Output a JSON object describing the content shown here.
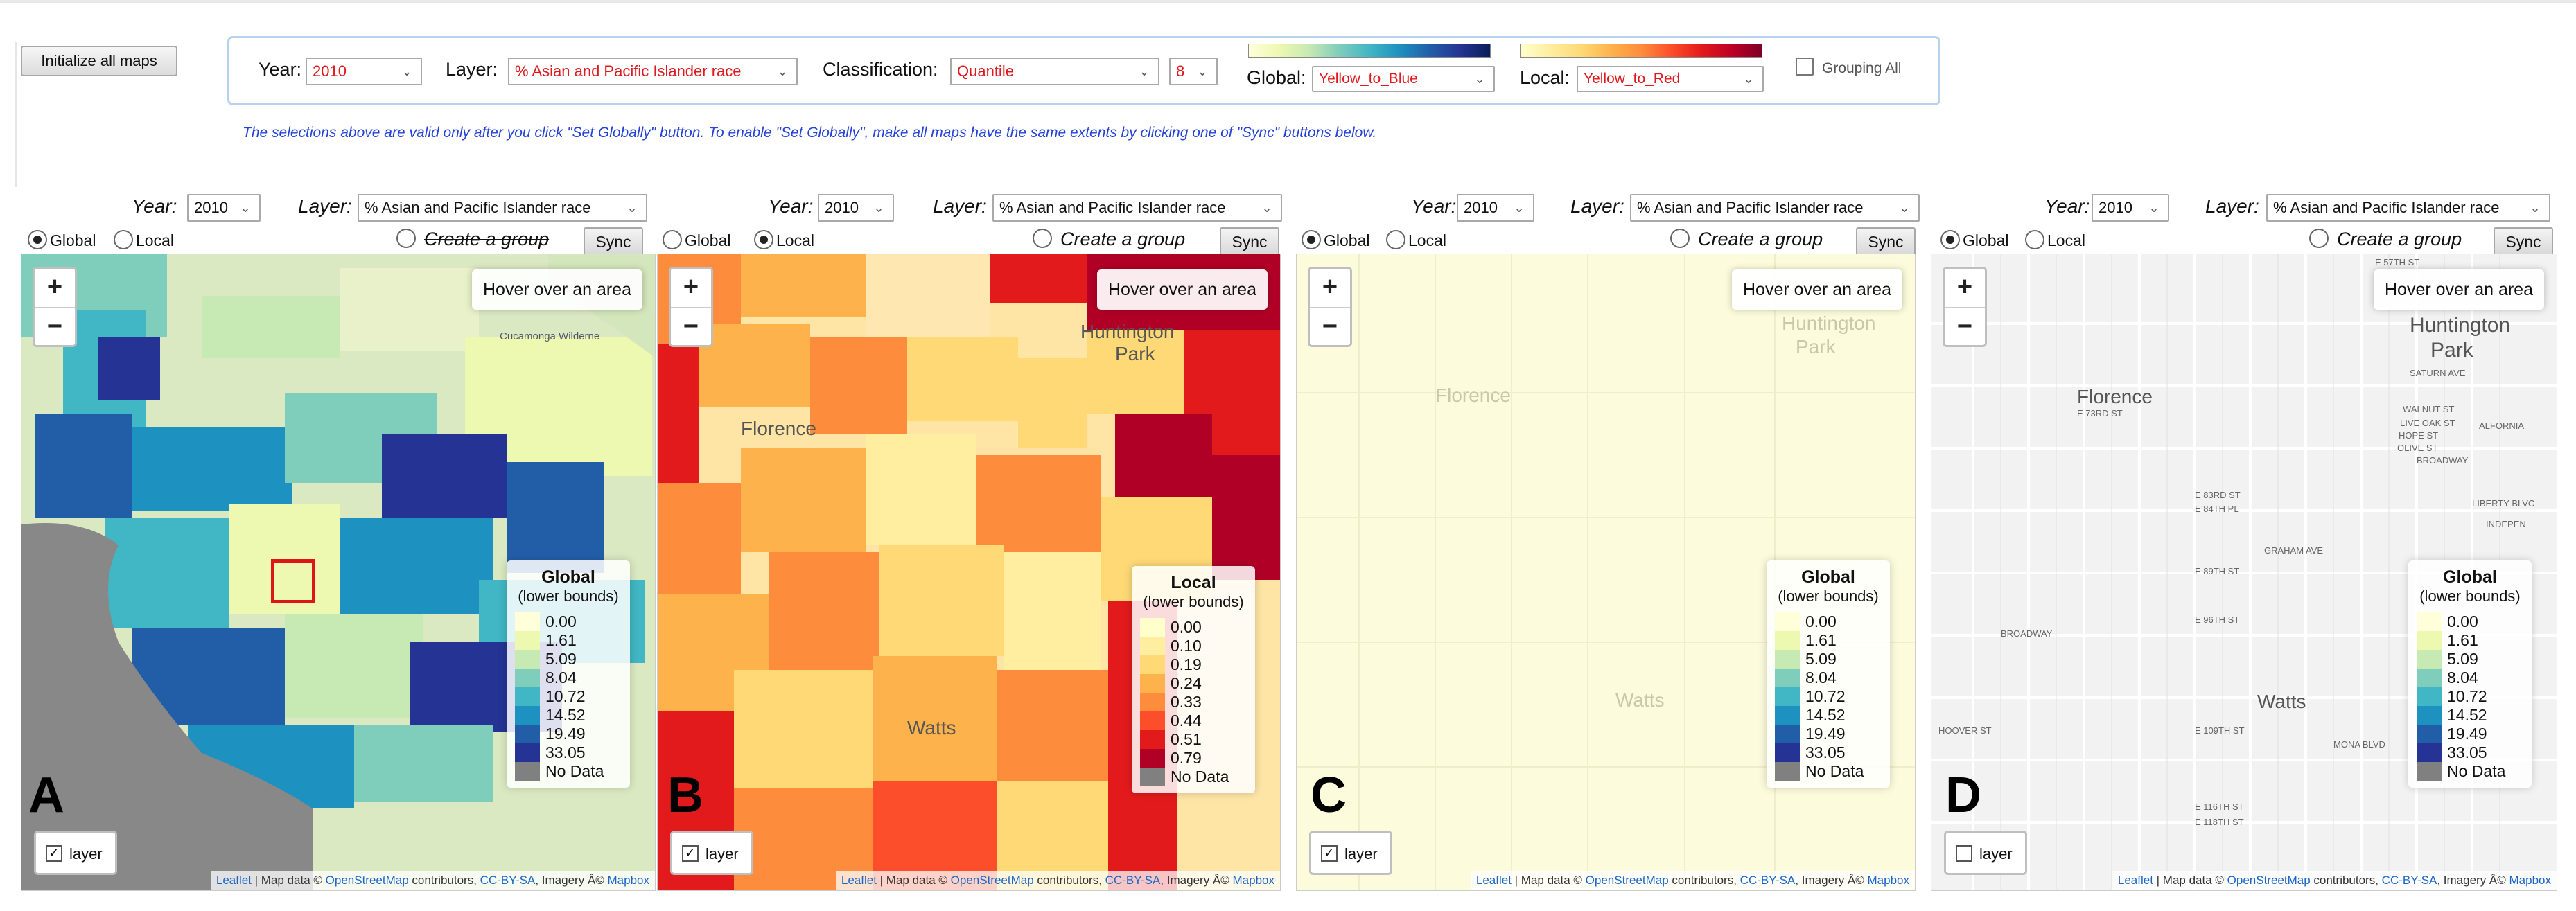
{
  "toolbar": {
    "init_button": "Initialize all maps",
    "year_label": "Year:",
    "year_value": "2010",
    "layer_label": "Layer:",
    "layer_value": "% Asian and Pacific Islander race",
    "classification_label": "Classification:",
    "classification_value": "Quantile",
    "classes_value": "8",
    "global_label": "Global:",
    "global_ramp_value": "Yellow_to_Blue",
    "local_label": "Local:",
    "local_ramp_value": "Yellow_to_Red",
    "grouping_label": "Grouping All",
    "note": "The selections above are valid only after you click \"Set Globally\" button. To enable \"Set Globally\", make all maps have the same extents by clicking one of \"Sync\" buttons below."
  },
  "panels": [
    {
      "letter": "A",
      "year_label": "Year:",
      "year": "2010",
      "layer_label": "Layer:",
      "layer": "% Asian and Pacific Islander race",
      "global_label": "Global",
      "local_label": "Local",
      "mode": "global",
      "group_label": "Create a group",
      "sync_label": "Sync",
      "zoom_in": "+",
      "zoom_out": "−",
      "hover_text": "Hover over an area",
      "legend_title": "Global",
      "legend_sub": "(lower bounds)",
      "layer_label_ctrl": "layer",
      "layer_checked": true,
      "places": [
        "Cucamonga Wilderne"
      ]
    },
    {
      "letter": "B",
      "year_label": "Year:",
      "year": "2010",
      "layer_label": "Layer:",
      "layer": "% Asian and Pacific Islander race",
      "global_label": "Global",
      "local_label": "Local",
      "mode": "local",
      "group_label": "Create a group",
      "sync_label": "Sync",
      "zoom_in": "+",
      "zoom_out": "−",
      "hover_text": "Hover over an area",
      "legend_title": "Local",
      "legend_sub": "(lower bounds)",
      "layer_label_ctrl": "layer",
      "layer_checked": true,
      "places": [
        "Florence",
        "Watts",
        "Huntington",
        "Park"
      ]
    },
    {
      "letter": "C",
      "year_label": "Year:",
      "year": "2010",
      "layer_label": "Layer:",
      "layer": "% Asian and Pacific Islander race",
      "global_label": "Global",
      "local_label": "Local",
      "mode": "global",
      "group_label": "Create a group",
      "sync_label": "Sync",
      "zoom_in": "+",
      "zoom_out": "−",
      "hover_text": "Hover over an area",
      "legend_title": "Global",
      "legend_sub": "(lower bounds)",
      "layer_label_ctrl": "layer",
      "layer_checked": true,
      "places": [
        "Florence",
        "Watts",
        "Huntington",
        "Park"
      ]
    },
    {
      "letter": "D",
      "year_label": "Year:",
      "year": "2010",
      "layer_label": "Layer:",
      "layer": "% Asian and Pacific Islander race",
      "global_label": "Global",
      "local_label": "Local",
      "mode": "global",
      "group_label": "Create a group",
      "sync_label": "Sync",
      "zoom_in": "+",
      "zoom_out": "−",
      "hover_text": "Hover over an area",
      "legend_title": "Global",
      "legend_sub": "(lower bounds)",
      "layer_label_ctrl": "layer",
      "layer_checked": false,
      "places": [
        "Florence",
        "Watts",
        "Huntington",
        "Park"
      ],
      "streets": [
        "E 57TH ST",
        "SATURN AVE",
        "WALNUT ST",
        "LIVE OAK ST",
        "HOPE ST",
        "OLIVE ST",
        "BROADWAY",
        "ALFORNIA",
        "LIBERTY BLVC",
        "INDEPEN",
        "E 83RD ST",
        "E 84TH PL",
        "E 89TH ST",
        "E 96TH ST",
        "E 109TH ST",
        "E 116TH ST",
        "E 118TH ST",
        "BROADWAY",
        "GRAHAM AVE",
        "MONA BLVD",
        "E 73RD ST",
        "HOOVER ST"
      ]
    }
  ],
  "legend_global": [
    {
      "label": "0.00",
      "color": "#ffffd9"
    },
    {
      "label": "1.61",
      "color": "#edf8b1"
    },
    {
      "label": "5.09",
      "color": "#c7e9b4"
    },
    {
      "label": "8.04",
      "color": "#7fcdbb"
    },
    {
      "label": "10.72",
      "color": "#41b6c4"
    },
    {
      "label": "14.52",
      "color": "#1d91c0"
    },
    {
      "label": "19.49",
      "color": "#225ea8"
    },
    {
      "label": "33.05",
      "color": "#253494"
    },
    {
      "label": "No Data",
      "color": "#808080"
    }
  ],
  "legend_local": [
    {
      "label": "0.00",
      "color": "#ffffcc"
    },
    {
      "label": "0.10",
      "color": "#ffeda0"
    },
    {
      "label": "0.19",
      "color": "#fed976"
    },
    {
      "label": "0.24",
      "color": "#feb24c"
    },
    {
      "label": "0.33",
      "color": "#fd8d3c"
    },
    {
      "label": "0.44",
      "color": "#fc4e2a"
    },
    {
      "label": "0.51",
      "color": "#e31a1c"
    },
    {
      "label": "0.79",
      "color": "#b10026"
    },
    {
      "label": "No Data",
      "color": "#808080"
    }
  ],
  "attribution": {
    "leaflet": "Leaflet",
    "mid": " | Map data © ",
    "osm": "OpenStreetMap",
    "contrib": " contributors, ",
    "cc": "CC-BY-SA",
    "imagery": ", Imagery Â© ",
    "mapbox": "Mapbox"
  },
  "colors": {
    "accent_red": "#e0191e",
    "note_blue": "#2441d8",
    "panel_border": "#b7d2ec"
  }
}
